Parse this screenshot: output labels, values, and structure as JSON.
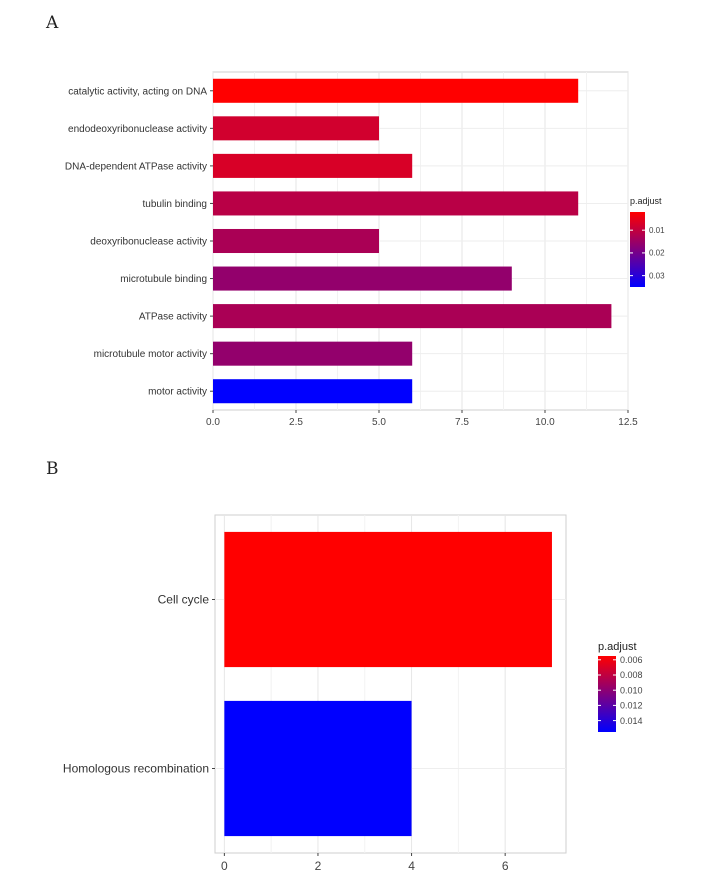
{
  "chart_data": [
    {
      "panel_label": "A",
      "type": "bar",
      "orientation": "horizontal",
      "categories": [
        "catalytic activity, acting on DNA",
        "endodeoxyribonuclease activity",
        "DNA-dependent ATPase activity",
        "tubulin binding",
        "deoxyribonuclease activity",
        "microtubule binding",
        "ATPase activity",
        "microtubule motor activity",
        "motor activity"
      ],
      "values": [
        11,
        5,
        6,
        11,
        5,
        9,
        12,
        6,
        6
      ],
      "p_adjust": [
        0.002,
        0.008,
        0.007,
        0.011,
        0.013,
        0.016,
        0.013,
        0.016,
        0.035
      ],
      "xlim": [
        0,
        12.5
      ],
      "xticks": [
        "0.0",
        "2.5",
        "5.0",
        "7.5",
        "10.0",
        "12.5"
      ],
      "xtick_values": [
        0,
        2.5,
        5,
        7.5,
        10,
        12.5
      ],
      "grid": true,
      "legend": {
        "title": "p.adjust",
        "placement": "right",
        "range": [
          0.002,
          0.035
        ],
        "tick_labels": [
          "0.01",
          "0.02",
          "0.03"
        ],
        "tick_values": [
          0.01,
          0.02,
          0.03
        ],
        "color_low": "#ff0000",
        "color_high": "#0000ff"
      }
    },
    {
      "panel_label": "B",
      "type": "bar",
      "orientation": "horizontal",
      "categories": [
        "Cell cycle",
        "Homologous recombination"
      ],
      "values": [
        7,
        4
      ],
      "p_adjust": [
        0.0055,
        0.0155
      ],
      "xlim": [
        -0.2,
        7.3
      ],
      "xticks": [
        "0",
        "2",
        "4",
        "6"
      ],
      "xtick_values": [
        0,
        2,
        4,
        6
      ],
      "grid": true,
      "legend": {
        "title": "p.adjust",
        "placement": "right",
        "range": [
          0.0055,
          0.0155
        ],
        "tick_labels": [
          "0.006",
          "0.008",
          "0.010",
          "0.012",
          "0.014"
        ],
        "tick_values": [
          0.006,
          0.008,
          0.01,
          0.012,
          0.014
        ],
        "color_low": "#ff0000",
        "color_high": "#0000ff"
      }
    }
  ]
}
